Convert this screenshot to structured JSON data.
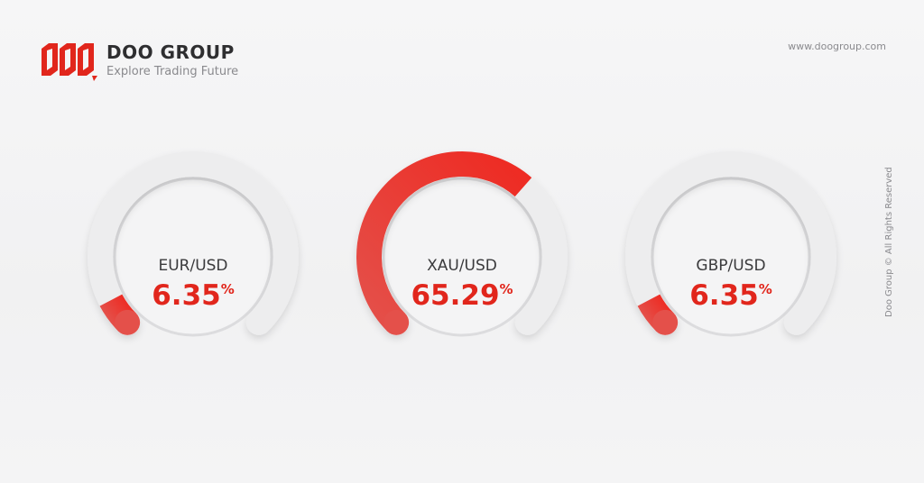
{
  "header": {
    "brand": "DOO GROUP",
    "tagline": "Explore Trading Future",
    "url": "www.doogroup.com",
    "logo_icon": "doo-logo-mark"
  },
  "side_text": "Doo Group © All Rights Reserved",
  "colors": {
    "accent": "#e1261c",
    "track": "#ededee"
  },
  "gauges": [
    {
      "label": "EUR/USD",
      "value": "6.35",
      "unit": "%",
      "percent": 6.35
    },
    {
      "label": "XAU/USD",
      "value": "65.29",
      "unit": "%",
      "percent": 65.29
    },
    {
      "label": "GBP/USD",
      "value": "6.35",
      "unit": "%",
      "percent": 6.35
    }
  ]
}
